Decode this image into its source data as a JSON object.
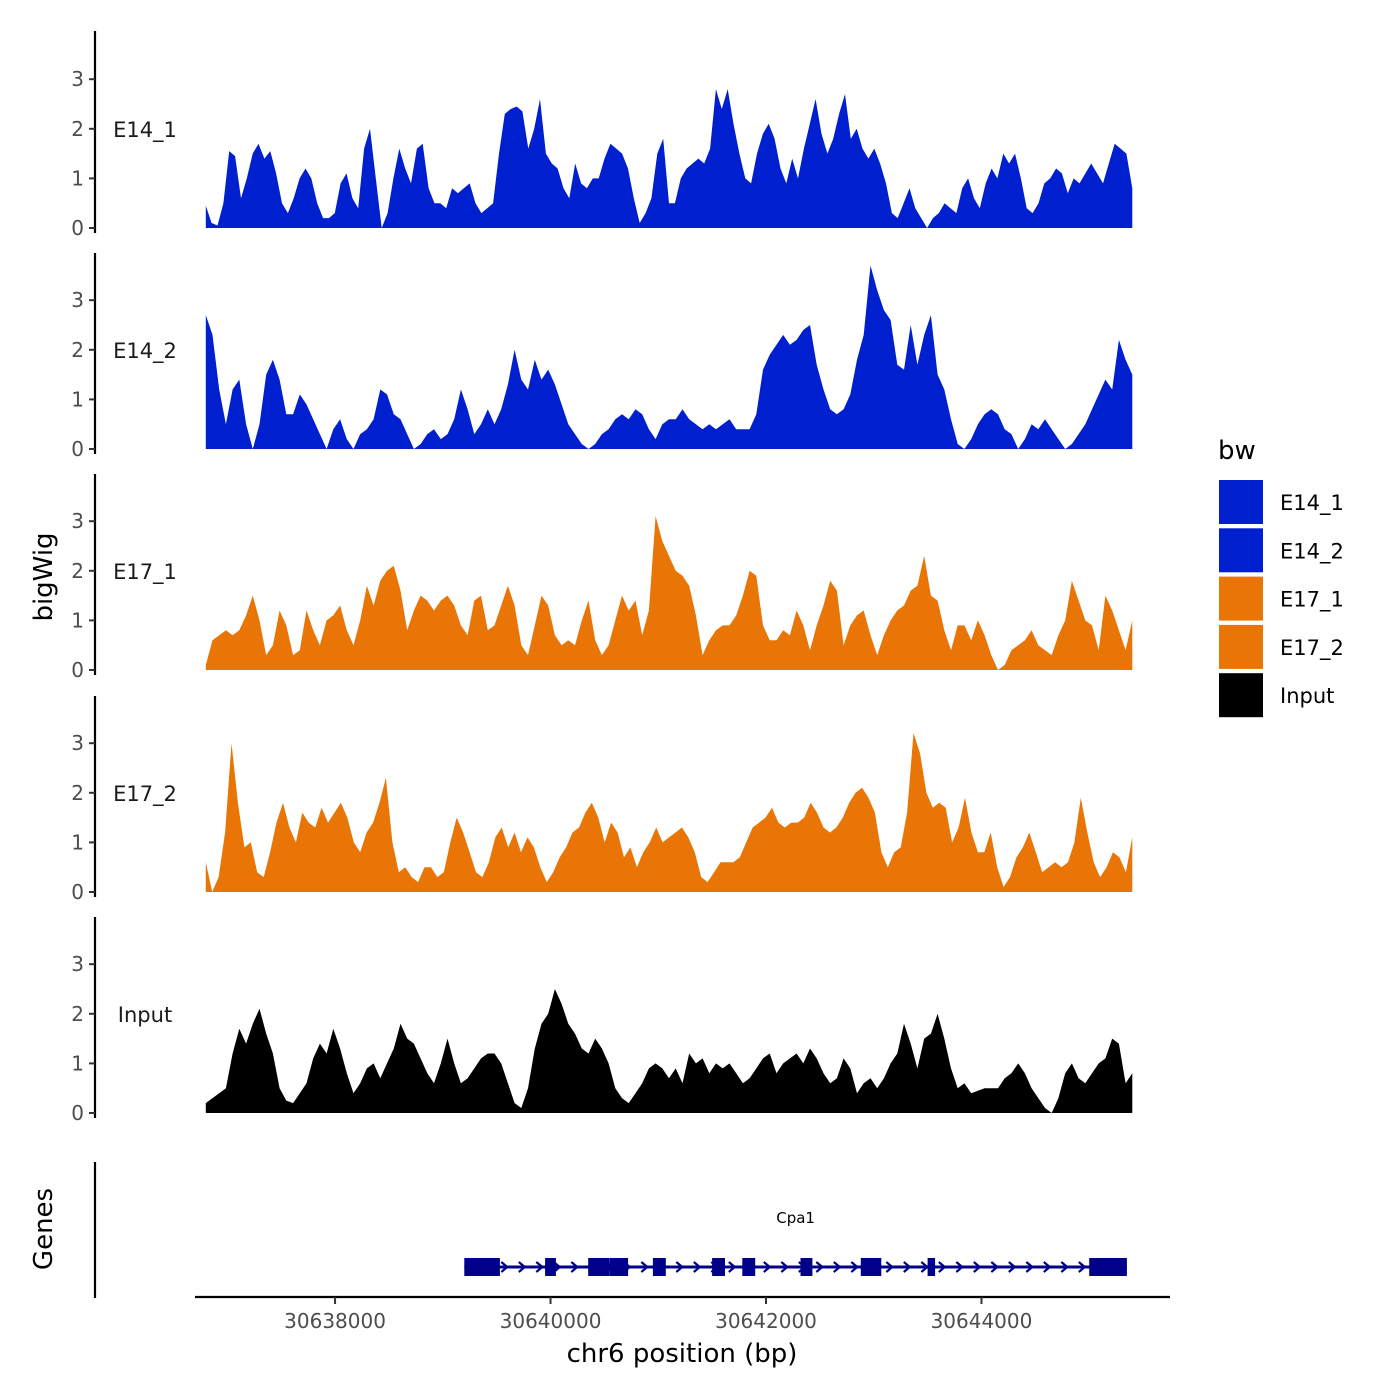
{
  "chart_data": {
    "type": "area",
    "ylabel": "bigWig",
    "xlabel": "chr6 position (bp)",
    "genes_label": "Genes",
    "x_range": [
      30636800,
      30645400
    ],
    "xlim": [
      30636700,
      30645750
    ],
    "y_range": [
      0,
      3.9
    ],
    "y_ticks": [
      0,
      1,
      2,
      3
    ],
    "x_ticks": [
      30638000,
      30640000,
      30642000,
      30644000
    ],
    "x_tick_labels": [
      "30638000",
      "30640000",
      "30642000",
      "30644000"
    ],
    "legend": {
      "title": "bw",
      "entries": [
        {
          "label": "E14_1",
          "color": "#0020d0"
        },
        {
          "label": "E14_2",
          "color": "#0020d0"
        },
        {
          "label": "E17_1",
          "color": "#e87506"
        },
        {
          "label": "E17_2",
          "color": "#e87506"
        },
        {
          "label": "Input",
          "color": "#000000"
        }
      ]
    },
    "series": [
      {
        "name": "E14_1",
        "color": "#0020d0",
        "values": [
          0.45,
          0.1,
          0.05,
          0.5,
          1.55,
          1.45,
          0.6,
          1.0,
          1.5,
          1.7,
          1.4,
          1.55,
          1.1,
          0.5,
          0.3,
          0.6,
          1.0,
          1.2,
          1.0,
          0.5,
          0.2,
          0.2,
          0.3,
          0.9,
          1.1,
          0.6,
          0.4,
          1.6,
          2.0,
          1.0,
          0.0,
          0.3,
          1.0,
          1.6,
          1.2,
          0.9,
          1.6,
          1.7,
          0.8,
          0.5,
          0.5,
          0.4,
          0.8,
          0.7,
          0.8,
          0.9,
          0.5,
          0.3,
          0.4,
          0.5,
          1.5,
          2.3,
          2.4,
          2.45,
          2.35,
          1.6,
          2.0,
          2.6,
          1.5,
          1.3,
          1.2,
          0.8,
          0.6,
          1.3,
          0.9,
          0.8,
          1.0,
          1.0,
          1.4,
          1.7,
          1.6,
          1.5,
          1.2,
          0.6,
          0.1,
          0.3,
          0.6,
          1.5,
          1.8,
          0.5,
          0.5,
          1.0,
          1.2,
          1.3,
          1.4,
          1.3,
          1.6,
          2.8,
          2.4,
          2.8,
          2.1,
          1.5,
          1.0,
          0.9,
          1.5,
          1.9,
          2.1,
          1.8,
          1.2,
          0.9,
          1.4,
          1.0,
          1.6,
          2.1,
          2.6,
          1.9,
          1.5,
          1.8,
          2.3,
          2.7,
          1.8,
          2.0,
          1.6,
          1.4,
          1.6,
          1.3,
          0.9,
          0.3,
          0.2,
          0.5,
          0.8,
          0.4,
          0.2,
          0.0,
          0.2,
          0.3,
          0.5,
          0.4,
          0.3,
          0.8,
          1.0,
          0.6,
          0.4,
          0.9,
          1.2,
          1.0,
          1.5,
          1.3,
          1.5,
          1.0,
          0.4,
          0.3,
          0.5,
          0.9,
          1.0,
          1.2,
          1.1,
          0.7,
          1.0,
          0.9,
          1.1,
          1.3,
          1.1,
          0.9,
          1.3,
          1.7,
          1.6,
          1.5,
          0.8
        ]
      },
      {
        "name": "E14_2",
        "color": "#0020d0",
        "values": [
          2.7,
          2.3,
          1.2,
          0.5,
          1.2,
          1.4,
          0.5,
          0.0,
          0.5,
          1.5,
          1.8,
          1.4,
          0.7,
          0.7,
          1.1,
          0.9,
          0.6,
          0.3,
          0.0,
          0.4,
          0.6,
          0.2,
          0.0,
          0.3,
          0.4,
          0.6,
          1.2,
          1.1,
          0.7,
          0.6,
          0.3,
          0.0,
          0.1,
          0.3,
          0.4,
          0.2,
          0.3,
          0.6,
          1.2,
          0.8,
          0.3,
          0.5,
          0.8,
          0.5,
          0.8,
          1.3,
          2.0,
          1.4,
          1.2,
          1.8,
          1.4,
          1.6,
          1.3,
          0.9,
          0.5,
          0.3,
          0.1,
          0.0,
          0.1,
          0.3,
          0.4,
          0.6,
          0.7,
          0.6,
          0.8,
          0.7,
          0.4,
          0.2,
          0.5,
          0.6,
          0.6,
          0.8,
          0.6,
          0.5,
          0.4,
          0.5,
          0.4,
          0.5,
          0.6,
          0.4,
          0.4,
          0.4,
          0.7,
          1.6,
          1.9,
          2.1,
          2.3,
          2.1,
          2.2,
          2.4,
          2.5,
          1.7,
          1.2,
          0.8,
          0.7,
          0.8,
          1.1,
          1.8,
          2.3,
          3.7,
          3.2,
          2.8,
          2.6,
          1.7,
          1.6,
          2.5,
          1.7,
          2.3,
          2.7,
          1.5,
          1.2,
          0.6,
          0.1,
          0.0,
          0.2,
          0.5,
          0.7,
          0.8,
          0.7,
          0.4,
          0.3,
          0.0,
          0.2,
          0.5,
          0.4,
          0.6,
          0.4,
          0.2,
          0.0,
          0.1,
          0.3,
          0.5,
          0.8,
          1.1,
          1.4,
          1.2,
          2.2,
          1.8,
          1.5
        ]
      },
      {
        "name": "E17_1",
        "color": "#e87506",
        "values": [
          0.1,
          0.6,
          0.7,
          0.8,
          0.7,
          0.8,
          1.1,
          1.5,
          1.0,
          0.3,
          0.5,
          1.2,
          0.9,
          0.3,
          0.4,
          1.2,
          0.8,
          0.5,
          1.0,
          1.1,
          1.3,
          0.8,
          0.5,
          1.0,
          1.7,
          1.3,
          1.8,
          2.0,
          2.1,
          1.6,
          0.8,
          1.2,
          1.5,
          1.4,
          1.2,
          1.4,
          1.5,
          1.3,
          0.9,
          0.7,
          1.4,
          1.5,
          0.8,
          0.9,
          1.3,
          1.7,
          1.3,
          0.5,
          0.3,
          0.9,
          1.5,
          1.3,
          0.7,
          0.5,
          0.6,
          0.5,
          1.0,
          1.4,
          0.6,
          0.3,
          0.5,
          1.0,
          1.5,
          1.2,
          1.4,
          0.7,
          1.2,
          3.1,
          2.6,
          2.3,
          2.0,
          1.9,
          1.7,
          1.1,
          0.3,
          0.6,
          0.8,
          0.9,
          0.9,
          1.1,
          1.5,
          2.0,
          1.9,
          0.9,
          0.6,
          0.6,
          0.8,
          0.7,
          1.2,
          0.9,
          0.4,
          0.9,
          1.3,
          1.8,
          1.6,
          0.5,
          0.9,
          1.1,
          1.2,
          0.7,
          0.3,
          0.7,
          1.0,
          1.2,
          1.3,
          1.6,
          1.7,
          2.3,
          1.5,
          1.4,
          0.8,
          0.4,
          0.9,
          0.9,
          0.6,
          1.0,
          0.7,
          0.3,
          0.0,
          0.1,
          0.4,
          0.5,
          0.6,
          0.8,
          0.5,
          0.4,
          0.3,
          0.7,
          1.0,
          1.8,
          1.4,
          1.0,
          0.9,
          0.4,
          1.5,
          1.2,
          0.8,
          0.4,
          1.0
        ]
      },
      {
        "name": "E17_2",
        "color": "#e87506",
        "values": [
          0.6,
          0.0,
          0.3,
          1.2,
          3.0,
          1.8,
          0.9,
          1.0,
          0.4,
          0.3,
          0.8,
          1.4,
          1.8,
          1.3,
          1.0,
          1.6,
          1.4,
          1.3,
          1.7,
          1.4,
          1.6,
          1.8,
          1.5,
          1.0,
          0.8,
          1.2,
          1.4,
          1.8,
          2.3,
          1.0,
          0.4,
          0.5,
          0.3,
          0.2,
          0.5,
          0.5,
          0.3,
          0.4,
          1.0,
          1.5,
          1.2,
          0.8,
          0.4,
          0.3,
          0.6,
          1.1,
          1.3,
          0.9,
          1.2,
          0.8,
          1.1,
          0.9,
          0.5,
          0.2,
          0.4,
          0.7,
          0.9,
          1.2,
          1.3,
          1.6,
          1.8,
          1.5,
          1.0,
          1.4,
          1.2,
          0.7,
          0.9,
          0.5,
          0.8,
          1.0,
          1.3,
          1.0,
          1.1,
          1.2,
          1.3,
          1.1,
          0.8,
          0.3,
          0.2,
          0.4,
          0.6,
          0.6,
          0.6,
          0.7,
          1.0,
          1.3,
          1.4,
          1.5,
          1.7,
          1.4,
          1.3,
          1.4,
          1.4,
          1.5,
          1.8,
          1.6,
          1.3,
          1.2,
          1.3,
          1.5,
          1.8,
          2.0,
          2.1,
          1.9,
          1.6,
          0.8,
          0.5,
          0.8,
          0.9,
          1.6,
          3.2,
          2.8,
          2.0,
          1.7,
          1.8,
          1.7,
          1.0,
          1.3,
          1.9,
          1.2,
          0.8,
          0.8,
          1.2,
          0.5,
          0.1,
          0.3,
          0.7,
          0.9,
          1.2,
          0.8,
          0.4,
          0.5,
          0.6,
          0.5,
          0.6,
          1.0,
          1.9,
          1.2,
          0.6,
          0.3,
          0.5,
          0.8,
          0.7,
          0.4,
          1.1
        ]
      },
      {
        "name": "Input",
        "color": "#000000",
        "values": [
          0.2,
          0.3,
          0.4,
          0.5,
          1.2,
          1.7,
          1.4,
          1.8,
          2.1,
          1.6,
          1.2,
          0.5,
          0.25,
          0.2,
          0.4,
          0.6,
          1.1,
          1.4,
          1.2,
          1.7,
          1.3,
          0.8,
          0.4,
          0.6,
          0.9,
          1.0,
          0.7,
          1.0,
          1.3,
          1.8,
          1.5,
          1.4,
          1.1,
          0.8,
          0.6,
          1.0,
          1.5,
          1.0,
          0.6,
          0.7,
          0.9,
          1.1,
          1.2,
          1.2,
          1.0,
          0.6,
          0.2,
          0.1,
          0.5,
          1.3,
          1.8,
          2.0,
          2.5,
          2.2,
          1.8,
          1.6,
          1.3,
          1.2,
          1.5,
          1.3,
          1.0,
          0.5,
          0.3,
          0.2,
          0.4,
          0.6,
          0.9,
          1.0,
          0.9,
          0.7,
          0.9,
          0.6,
          1.2,
          1.0,
          1.1,
          0.8,
          1.0,
          0.9,
          1.0,
          0.8,
          0.6,
          0.7,
          0.9,
          1.1,
          1.2,
          0.8,
          1.0,
          1.1,
          1.2,
          1.0,
          1.3,
          1.1,
          0.8,
          0.6,
          0.7,
          1.1,
          0.9,
          0.4,
          0.6,
          0.7,
          0.5,
          0.7,
          1.0,
          1.2,
          1.8,
          1.4,
          0.9,
          1.5,
          1.6,
          2.0,
          1.5,
          0.9,
          0.5,
          0.6,
          0.4,
          0.45,
          0.5,
          0.5,
          0.5,
          0.7,
          0.8,
          1.0,
          0.8,
          0.5,
          0.3,
          0.1,
          0.0,
          0.3,
          0.8,
          1.0,
          0.7,
          0.6,
          0.8,
          1.0,
          1.1,
          1.5,
          1.4,
          0.6,
          0.8
        ]
      }
    ],
    "gene": {
      "name": "Cpa1",
      "start": 30639200,
      "end": 30645350,
      "strand": "+",
      "color": "#00008b",
      "exons": [
        [
          30639200,
          30639530
        ],
        [
          30639950,
          30640050
        ],
        [
          30640350,
          30640550
        ],
        [
          30640550,
          30640720
        ],
        [
          30640950,
          30641070
        ],
        [
          30641500,
          30641620
        ],
        [
          30641780,
          30641900
        ],
        [
          30642320,
          30642430
        ],
        [
          30642880,
          30643070
        ],
        [
          30643500,
          30643570
        ],
        [
          30645000,
          30645350
        ]
      ]
    }
  }
}
